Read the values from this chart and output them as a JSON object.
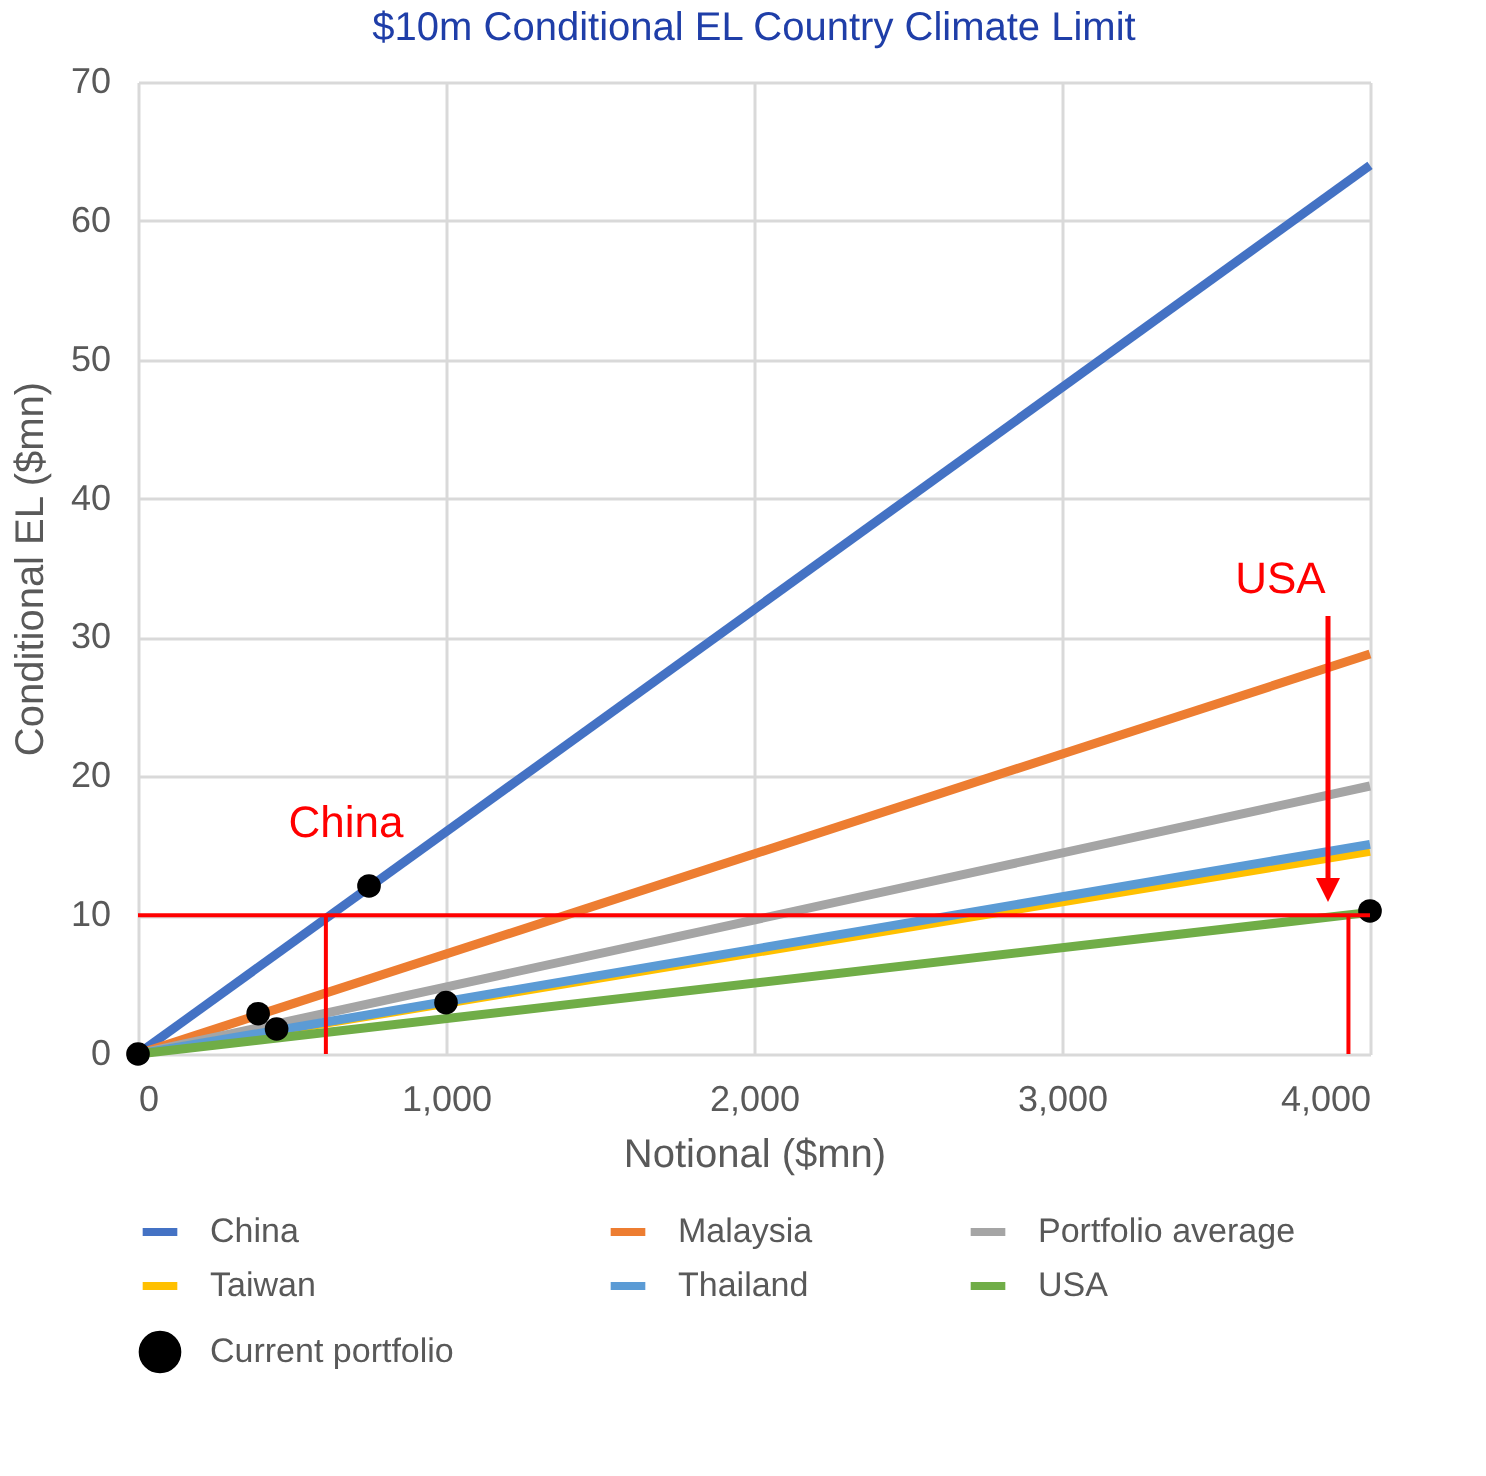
{
  "chart_data": {
    "type": "line",
    "title": "$10m Conditional EL Country Climate Limit",
    "xlabel": "Notional ($mn)",
    "ylabel": "Conditional EL ($mn)",
    "xlim": [
      0,
      4000
    ],
    "xticks": [
      0,
      {
        "value": 1000,
        "label": "1,000"
      },
      {
        "value": 2000,
        "label": "2,000"
      },
      {
        "value": 3000,
        "label": "3,000"
      },
      {
        "value": 4000,
        "label": "4,000"
      }
    ],
    "ylim": [
      0,
      70
    ],
    "yticks": [
      0,
      10,
      20,
      30,
      40,
      50,
      60,
      70
    ],
    "grid": true,
    "legend": "bottom",
    "marker": "none",
    "line_style": "solid",
    "series": [
      {
        "name": "China",
        "color": "#4472c4",
        "x": [
          0,
          4000
        ],
        "values": [
          0,
          64.0
        ]
      },
      {
        "name": "Malaysia",
        "color": "#ed7d31",
        "x": [
          0,
          4000
        ],
        "values": [
          0,
          28.8
        ]
      },
      {
        "name": "Portfolio average",
        "color": "#a5a5a5",
        "x": [
          0,
          4000
        ],
        "values": [
          0,
          19.3
        ]
      },
      {
        "name": "Taiwan",
        "color": "#ffc000",
        "x": [
          0,
          4000
        ],
        "values": [
          0,
          14.6
        ]
      },
      {
        "name": "Thailand",
        "color": "#5b9bd5",
        "x": [
          0,
          4000
        ],
        "values": [
          0,
          15.1
        ]
      },
      {
        "name": "USA",
        "color": "#70ad47",
        "x": [
          0,
          4000
        ],
        "values": [
          0,
          10.2
        ]
      },
      {
        "name": "Current portfolio",
        "type": "scatter",
        "marker": "circle",
        "color": "#000000",
        "x": [
          0,
          390,
          450,
          750,
          1000,
          4000
        ],
        "values": [
          0,
          2.9,
          1.8,
          12.1,
          3.7,
          10.3
        ]
      }
    ],
    "ref_lines": [
      {
        "axis": "y",
        "value": 10,
        "color": "#ff0000"
      },
      {
        "axis": "x",
        "value": 610,
        "color": "#ff0000"
      },
      {
        "axis": "x",
        "value": 3930,
        "color": "#ff0000"
      }
    ],
    "annotations": [
      {
        "text": "China",
        "x": 610,
        "y": 10
      },
      "USA"
    ]
  }
}
